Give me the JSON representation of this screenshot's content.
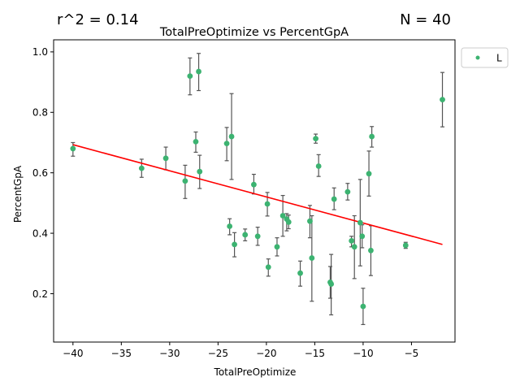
{
  "header": {
    "r2_text": "r^2 = 0.14",
    "n_text": "N = 40"
  },
  "chart_data": {
    "type": "scatter",
    "title": "TotalPreOptimize vs PercentGpA",
    "xlabel": "TotalPreOptimize",
    "ylabel": "PercentGpA",
    "xlim": [
      -42,
      -0.5
    ],
    "ylim": [
      0.04,
      1.04
    ],
    "xticks": [
      -40,
      -35,
      -30,
      -25,
      -20,
      -15,
      -10,
      -5
    ],
    "yticks": [
      0.2,
      0.4,
      0.6,
      0.8,
      1.0
    ],
    "xtick_labels": [
      "−40",
      "−35",
      "−30",
      "−25",
      "−20",
      "−15",
      "−10",
      "−5"
    ],
    "ytick_labels": [
      "0.2",
      "0.4",
      "0.6",
      "0.8",
      "1.0"
    ],
    "grid": false,
    "legend": {
      "position": "outside-top-right",
      "entries": [
        {
          "label": "L",
          "color": "#3cb371"
        }
      ]
    },
    "colors": {
      "points": "#3cb371",
      "errorbars": "#555555",
      "fit_line": "#ff0000"
    },
    "fit_line": {
      "x": [
        -40,
        -1.8
      ],
      "y": [
        0.693,
        0.363
      ]
    },
    "series": [
      {
        "name": "L",
        "points": [
          {
            "x": -40.0,
            "y": 0.68,
            "ylo": 0.655,
            "yhi": 0.7
          },
          {
            "x": -32.9,
            "y": 0.615,
            "ylo": 0.585,
            "yhi": 0.645
          },
          {
            "x": -30.4,
            "y": 0.648,
            "ylo": 0.61,
            "yhi": 0.685
          },
          {
            "x": -28.4,
            "y": 0.573,
            "ylo": 0.515,
            "yhi": 0.625
          },
          {
            "x": -27.9,
            "y": 0.92,
            "ylo": 0.858,
            "yhi": 0.98
          },
          {
            "x": -27.3,
            "y": 0.703,
            "ylo": 0.668,
            "yhi": 0.735
          },
          {
            "x": -27.0,
            "y": 0.935,
            "ylo": 0.872,
            "yhi": 0.995
          },
          {
            "x": -26.9,
            "y": 0.604,
            "ylo": 0.548,
            "yhi": 0.658
          },
          {
            "x": -24.1,
            "y": 0.697,
            "ylo": 0.64,
            "yhi": 0.75
          },
          {
            "x": -23.8,
            "y": 0.423,
            "ylo": 0.395,
            "yhi": 0.448
          },
          {
            "x": -23.6,
            "y": 0.72,
            "ylo": 0.578,
            "yhi": 0.862
          },
          {
            "x": -23.3,
            "y": 0.363,
            "ylo": 0.322,
            "yhi": 0.402
          },
          {
            "x": -22.2,
            "y": 0.395,
            "ylo": 0.375,
            "yhi": 0.414
          },
          {
            "x": -21.3,
            "y": 0.561,
            "ylo": 0.53,
            "yhi": 0.595
          },
          {
            "x": -20.9,
            "y": 0.39,
            "ylo": 0.36,
            "yhi": 0.42
          },
          {
            "x": -19.9,
            "y": 0.497,
            "ylo": 0.457,
            "yhi": 0.535
          },
          {
            "x": -19.8,
            "y": 0.288,
            "ylo": 0.258,
            "yhi": 0.315
          },
          {
            "x": -18.9,
            "y": 0.355,
            "ylo": 0.325,
            "yhi": 0.385
          },
          {
            "x": -18.3,
            "y": 0.458,
            "ylo": 0.39,
            "yhi": 0.525
          },
          {
            "x": -17.9,
            "y": 0.447,
            "ylo": 0.408,
            "yhi": 0.465
          },
          {
            "x": -17.7,
            "y": 0.437,
            "ylo": 0.415,
            "yhi": 0.46
          },
          {
            "x": -16.5,
            "y": 0.268,
            "ylo": 0.225,
            "yhi": 0.308
          },
          {
            "x": -15.5,
            "y": 0.44,
            "ylo": 0.385,
            "yhi": 0.492
          },
          {
            "x": -15.3,
            "y": 0.318,
            "ylo": 0.175,
            "yhi": 0.458
          },
          {
            "x": -14.9,
            "y": 0.713,
            "ylo": 0.698,
            "yhi": 0.728
          },
          {
            "x": -14.6,
            "y": 0.622,
            "ylo": 0.588,
            "yhi": 0.66
          },
          {
            "x": -13.4,
            "y": 0.238,
            "ylo": 0.185,
            "yhi": 0.29
          },
          {
            "x": -13.3,
            "y": 0.232,
            "ylo": 0.13,
            "yhi": 0.33
          },
          {
            "x": -13.0,
            "y": 0.513,
            "ylo": 0.478,
            "yhi": 0.55
          },
          {
            "x": -11.6,
            "y": 0.537,
            "ylo": 0.51,
            "yhi": 0.565
          },
          {
            "x": -11.2,
            "y": 0.375,
            "ylo": 0.355,
            "yhi": 0.39
          },
          {
            "x": -10.9,
            "y": 0.355,
            "ylo": 0.25,
            "yhi": 0.458
          },
          {
            "x": -10.3,
            "y": 0.435,
            "ylo": 0.292,
            "yhi": 0.578
          },
          {
            "x": -10.1,
            "y": 0.39,
            "ylo": 0.352,
            "yhi": 0.428
          },
          {
            "x": -10.0,
            "y": 0.158,
            "ylo": 0.098,
            "yhi": 0.218
          },
          {
            "x": -9.4,
            "y": 0.597,
            "ylo": 0.523,
            "yhi": 0.672
          },
          {
            "x": -9.2,
            "y": 0.343,
            "ylo": 0.26,
            "yhi": 0.425
          },
          {
            "x": -9.1,
            "y": 0.72,
            "ylo": 0.685,
            "yhi": 0.753
          },
          {
            "x": -5.6,
            "y": 0.36,
            "ylo": 0.35,
            "yhi": 0.37
          },
          {
            "x": -1.8,
            "y": 0.842,
            "ylo": 0.752,
            "yhi": 0.932
          }
        ]
      }
    ]
  }
}
